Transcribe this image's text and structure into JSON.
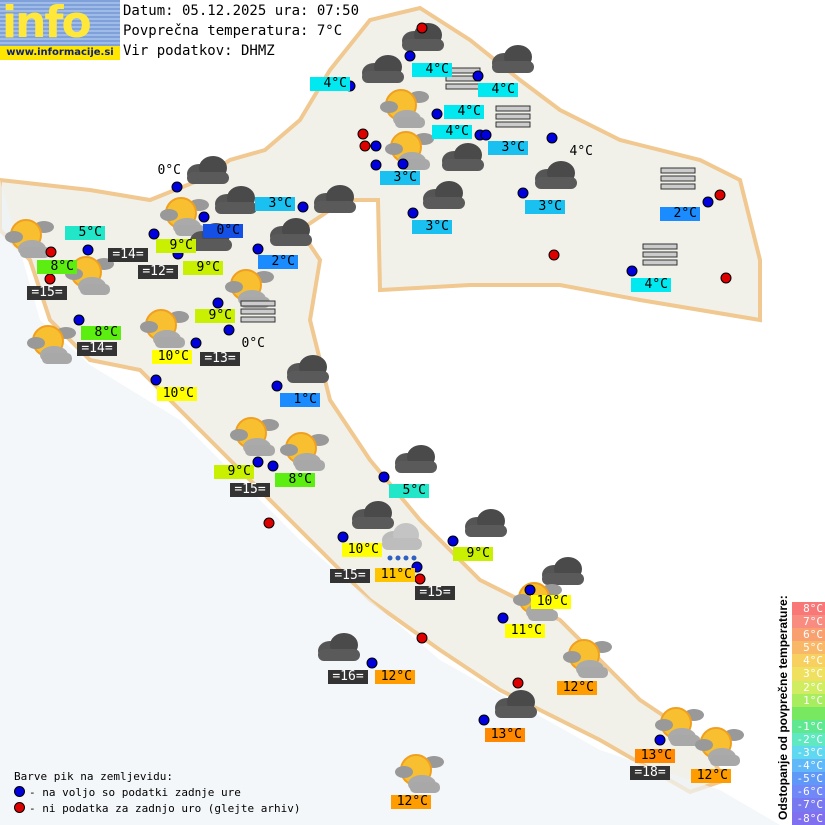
{
  "logo": {
    "word": "info",
    "url": "www.informacije.si"
  },
  "header": {
    "date_line": "Datum: 05.12.2025 ura: 07:50",
    "avg_temp_line": "Povprečna temperatura: 7°C",
    "source_line": "Vir podatkov: DHMZ"
  },
  "legend": {
    "title": "Barve pik na zemljevidu:",
    "available": "- na voljo so podatki zadnje ure",
    "unavailable": "- ni podatka za zadnjo uro (glejte arhiv)"
  },
  "colors": {
    "dot_available": "#0000dd",
    "dot_unavailable": "#dd0000",
    "cyan": "#00e8f0",
    "sky": "#19c0f0",
    "blue": "#1a8cff",
    "deepblue": "#1450e6",
    "teal": "#22e6c8",
    "yellowgreen": "#c8f000",
    "green": "#5cee10",
    "yellow": "#ffff00",
    "amber": "#ffc400",
    "orange": "#ff9c00",
    "darkorange": "#ff8800"
  },
  "scale": {
    "title": "Odstopanje od povprečne temperature:",
    "entries": [
      {
        "label": "8°C",
        "color": "#f87878"
      },
      {
        "label": "7°C",
        "color": "#f88c80"
      },
      {
        "label": "6°C",
        "color": "#f8a070"
      },
      {
        "label": "5°C",
        "color": "#f8b868"
      },
      {
        "label": "4°C",
        "color": "#f8d060"
      },
      {
        "label": "3°C",
        "color": "#f0e060"
      },
      {
        "label": "2°C",
        "color": "#d0ec60"
      },
      {
        "label": "1°C",
        "color": "#a8ec60"
      },
      {
        "label": "",
        "color": "#78e860"
      },
      {
        "label": "-1°C",
        "color": "#60e890"
      },
      {
        "label": "-2°C",
        "color": "#60e8c0"
      },
      {
        "label": "-3°C",
        "color": "#60d8f0"
      },
      {
        "label": "-4°C",
        "color": "#60b8f8"
      },
      {
        "label": "-5°C",
        "color": "#6098f8"
      },
      {
        "label": "-6°C",
        "color": "#7088f8"
      },
      {
        "label": "-7°C",
        "color": "#7878f0"
      },
      {
        "label": "-8°C",
        "color": "#8070f0"
      }
    ]
  },
  "stations": [
    {
      "text": "4°C",
      "style": "cyan"
    },
    {
      "text": "4°C",
      "style": "cyan"
    },
    {
      "text": "4°C",
      "style": "cyan"
    },
    {
      "text": "4°C",
      "style": "cyan"
    },
    {
      "text": "4°C",
      "style": "cyan"
    },
    {
      "text": "3°C",
      "style": "sky"
    },
    {
      "text": "3°C",
      "style": "sky"
    },
    {
      "text": "4°C",
      "style": "plain"
    },
    {
      "text": "3°C",
      "style": "sky"
    },
    {
      "text": "3°C",
      "style": "sky"
    },
    {
      "text": "3°C",
      "style": "sky"
    },
    {
      "text": "0°C",
      "style": "plain"
    },
    {
      "text": "2°C",
      "style": "blue"
    },
    {
      "text": "0°C",
      "style": "deepblue"
    },
    {
      "text": "5°C",
      "style": "teal"
    },
    {
      "text": "9°C",
      "style": "yellowgreen"
    },
    {
      "text": "=14=",
      "style": "dark"
    },
    {
      "text": "8°C",
      "style": "green"
    },
    {
      "text": "=12=",
      "style": "dark"
    },
    {
      "text": "9°C",
      "style": "yellowgreen"
    },
    {
      "text": "2°C",
      "style": "blue"
    },
    {
      "text": "=15=",
      "style": "dark"
    },
    {
      "text": "4°C",
      "style": "cyan"
    },
    {
      "text": "9°C",
      "style": "yellowgreen"
    },
    {
      "text": "8°C",
      "style": "green"
    },
    {
      "text": "=14=",
      "style": "dark"
    },
    {
      "text": "10°C",
      "style": "yellow"
    },
    {
      "text": "=13=",
      "style": "dark"
    },
    {
      "text": "0°C",
      "style": "plain"
    },
    {
      "text": "10°C",
      "style": "yellow"
    },
    {
      "text": "1°C",
      "style": "blue"
    },
    {
      "text": "9°C",
      "style": "yellowgreen"
    },
    {
      "text": "8°C",
      "style": "green"
    },
    {
      "text": "=15=",
      "style": "dark"
    },
    {
      "text": "5°C",
      "style": "teal"
    },
    {
      "text": "10°C",
      "style": "yellow"
    },
    {
      "text": "9°C",
      "style": "yellowgreen"
    },
    {
      "text": "=15=",
      "style": "dark"
    },
    {
      "text": "11°C",
      "style": "amber"
    },
    {
      "text": "=15=",
      "style": "dark"
    },
    {
      "text": "10°C",
      "style": "yellow"
    },
    {
      "text": "11°C",
      "style": "yellow"
    },
    {
      "text": "=16=",
      "style": "dark"
    },
    {
      "text": "12°C",
      "style": "orange"
    },
    {
      "text": "12°C",
      "style": "orange"
    },
    {
      "text": "13°C",
      "style": "darkorange"
    },
    {
      "text": "13°C",
      "style": "darkorange"
    },
    {
      "text": "=18=",
      "style": "dark"
    },
    {
      "text": "12°C",
      "style": "orange"
    },
    {
      "text": "12°C",
      "style": "orange"
    }
  ],
  "weather_icons": [
    "cloud-icon",
    "cloud-icon",
    "cloud-icon",
    "sun-cloud-icon",
    "sun-cloud-icon",
    "cloud-icon",
    "cloud-icon",
    "cloud-icon",
    "cloud-icon",
    "cloud-icon",
    "cloud-icon",
    "sun-cloud-icon",
    "cloud-icon",
    "cloud-icon",
    "sun-cloud-icon",
    "sun-cloud-icon",
    "sun-cloud-icon",
    "sun-cloud-icon",
    "sun-cloud-icon",
    "cloud-icon",
    "sun-cloud-icon",
    "sun-cloud-icon",
    "cloud-icon",
    "cloud-icon",
    "cloud-icon",
    "rain-icon",
    "cloud-icon",
    "sun-cloud-icon",
    "sun-cloud-icon",
    "cloud-icon",
    "cloud-icon",
    "sun-cloud-icon",
    "sun-cloud-icon",
    "sun-cloud-icon",
    "fog-icon",
    "fog-icon",
    "fog-icon",
    "fog-icon",
    "fog-icon"
  ],
  "dots": [
    "unavailable",
    "available",
    "available",
    "available",
    "available",
    "available",
    "available",
    "unavailable",
    "unavailable",
    "available",
    "available",
    "available",
    "available",
    "unavailable",
    "available",
    "available",
    "available",
    "available",
    "available",
    "available",
    "available",
    "available",
    "unavailable",
    "available",
    "available",
    "available",
    "available",
    "available",
    "available",
    "unavailable",
    "unavailable",
    "available",
    "available",
    "available",
    "unavailable",
    "available",
    "available",
    "available",
    "unavailable",
    "available",
    "available",
    "unavailable",
    "available",
    "unavailable",
    "available",
    "available",
    "unavailable",
    "available",
    "available",
    "available"
  ]
}
